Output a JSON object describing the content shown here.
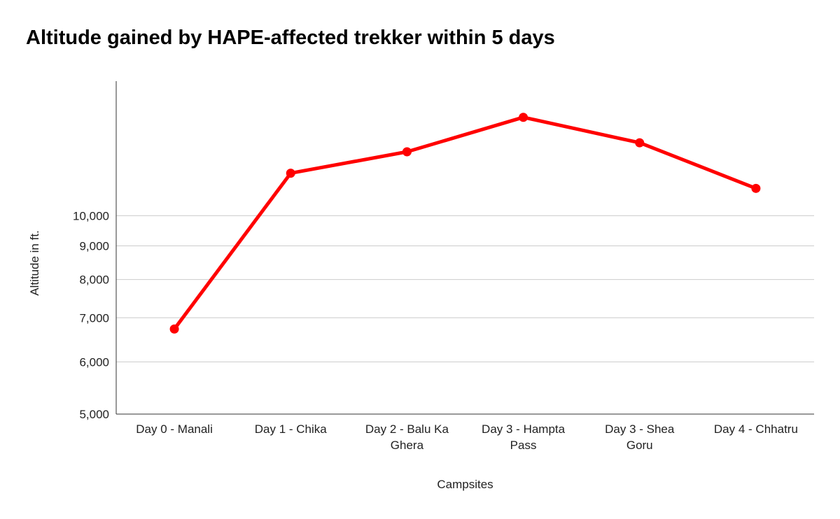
{
  "chart_data": {
    "type": "line",
    "title": "Altitude gained by HAPE-affected trekker within 5 days",
    "xlabel": "Campsites",
    "ylabel": "Altitude in ft.",
    "y_scale": "log",
    "ylim": [
      5000,
      16000
    ],
    "yticks": [
      5000,
      6000,
      7000,
      8000,
      9000,
      10000
    ],
    "ytick_labels": [
      "5,000",
      "6,000",
      "7,000",
      "8,000",
      "9,000",
      "10,000"
    ],
    "categories": [
      [
        "Day 0 - Manali"
      ],
      [
        "Day 1 - Chika"
      ],
      [
        "Day 2 - Balu Ka",
        "Ghera"
      ],
      [
        "Day 3 - Hampta",
        "Pass"
      ],
      [
        "Day 3 - Shea",
        "Goru"
      ],
      [
        "Day 4 - Chhatru"
      ]
    ],
    "series": [
      {
        "values": [
          6730,
          11600,
          12500,
          14100,
          12900,
          11000
        ],
        "color": "#ff0000"
      }
    ],
    "grid": "horizontal",
    "legend": "none"
  }
}
